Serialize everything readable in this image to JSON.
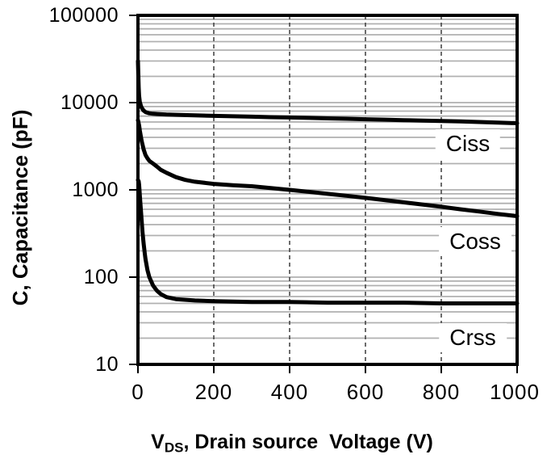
{
  "chart_data": {
    "type": "line",
    "title": "",
    "ylabel": "C, Capacitance (pF)",
    "xlabel_prefix": "V",
    "xlabel_subscript": "DS",
    "xlabel_suffix": ", Drain source  Voltage (V)",
    "x_axis": {
      "min": 0,
      "max": 1000,
      "tick_labels": [
        "0",
        "200",
        "400",
        "600",
        "800",
        "1000"
      ],
      "tick_values": [
        0,
        200,
        400,
        600,
        800,
        1000
      ],
      "gridline_values": [
        200,
        400,
        600,
        800
      ],
      "gridline_style": "dashed"
    },
    "y_axis": {
      "scale": "log",
      "min": 10,
      "max": 100000,
      "tick_labels": [
        "100000",
        "10000",
        "1000",
        "100",
        "10"
      ],
      "tick_values": [
        100000,
        10000,
        1000,
        100,
        10
      ],
      "minor_gridlines": true
    },
    "grid_on": true,
    "legend_position": "inline-labels",
    "colors": {
      "curve": "#000000",
      "minor_grid": "#b0b0b0",
      "dashed_grid": "#3c3c3c",
      "frame": "#000000",
      "background": "#ffffff",
      "label_bg": "#ffffff"
    },
    "series": [
      {
        "name": "Ciss",
        "label": "Ciss",
        "points": [
          [
            0,
            30000
          ],
          [
            1,
            20000
          ],
          [
            2,
            15000
          ],
          [
            3,
            12000
          ],
          [
            5,
            10200
          ],
          [
            8,
            9100
          ],
          [
            10,
            8700
          ],
          [
            15,
            8100
          ],
          [
            20,
            7800
          ],
          [
            30,
            7550
          ],
          [
            40,
            7450
          ],
          [
            50,
            7400
          ],
          [
            75,
            7300
          ],
          [
            100,
            7250
          ],
          [
            150,
            7150
          ],
          [
            200,
            7050
          ],
          [
            250,
            6980
          ],
          [
            300,
            6900
          ],
          [
            350,
            6820
          ],
          [
            400,
            6750
          ],
          [
            450,
            6680
          ],
          [
            500,
            6600
          ],
          [
            550,
            6530
          ],
          [
            600,
            6450
          ],
          [
            650,
            6380
          ],
          [
            700,
            6300
          ],
          [
            750,
            6230
          ],
          [
            800,
            6150
          ],
          [
            850,
            6080
          ],
          [
            900,
            6000
          ],
          [
            950,
            5900
          ],
          [
            1000,
            5800
          ]
        ]
      },
      {
        "name": "Coss",
        "label": "Coss",
        "points": [
          [
            0,
            6300
          ],
          [
            3,
            5500
          ],
          [
            5,
            4800
          ],
          [
            8,
            4000
          ],
          [
            10,
            3600
          ],
          [
            15,
            2900
          ],
          [
            20,
            2500
          ],
          [
            25,
            2300
          ],
          [
            30,
            2150
          ],
          [
            40,
            2000
          ],
          [
            50,
            1850
          ],
          [
            60,
            1700
          ],
          [
            75,
            1570
          ],
          [
            100,
            1400
          ],
          [
            125,
            1300
          ],
          [
            150,
            1240
          ],
          [
            200,
            1170
          ],
          [
            250,
            1130
          ],
          [
            300,
            1100
          ],
          [
            350,
            1050
          ],
          [
            400,
            1000
          ],
          [
            450,
            950
          ],
          [
            500,
            900
          ],
          [
            550,
            855
          ],
          [
            600,
            810
          ],
          [
            650,
            765
          ],
          [
            700,
            720
          ],
          [
            750,
            680
          ],
          [
            800,
            640
          ],
          [
            850,
            600
          ],
          [
            900,
            565
          ],
          [
            950,
            530
          ],
          [
            1000,
            500
          ]
        ]
      },
      {
        "name": "Crss",
        "label": "Crss",
        "points": [
          [
            0,
            1300
          ],
          [
            2,
            1250
          ],
          [
            3,
            1150
          ],
          [
            4,
            1000
          ],
          [
            5,
            870
          ],
          [
            6,
            750
          ],
          [
            8,
            560
          ],
          [
            10,
            430
          ],
          [
            12,
            330
          ],
          [
            15,
            240
          ],
          [
            18,
            185
          ],
          [
            20,
            160
          ],
          [
            25,
            120
          ],
          [
            30,
            100
          ],
          [
            40,
            80
          ],
          [
            50,
            70
          ],
          [
            60,
            64
          ],
          [
            75,
            59
          ],
          [
            100,
            56
          ],
          [
            150,
            54
          ],
          [
            200,
            53
          ],
          [
            300,
            52
          ],
          [
            400,
            52
          ],
          [
            500,
            51
          ],
          [
            600,
            51
          ],
          [
            700,
            51
          ],
          [
            800,
            50
          ],
          [
            900,
            50
          ],
          [
            1000,
            50
          ]
        ]
      }
    ]
  }
}
